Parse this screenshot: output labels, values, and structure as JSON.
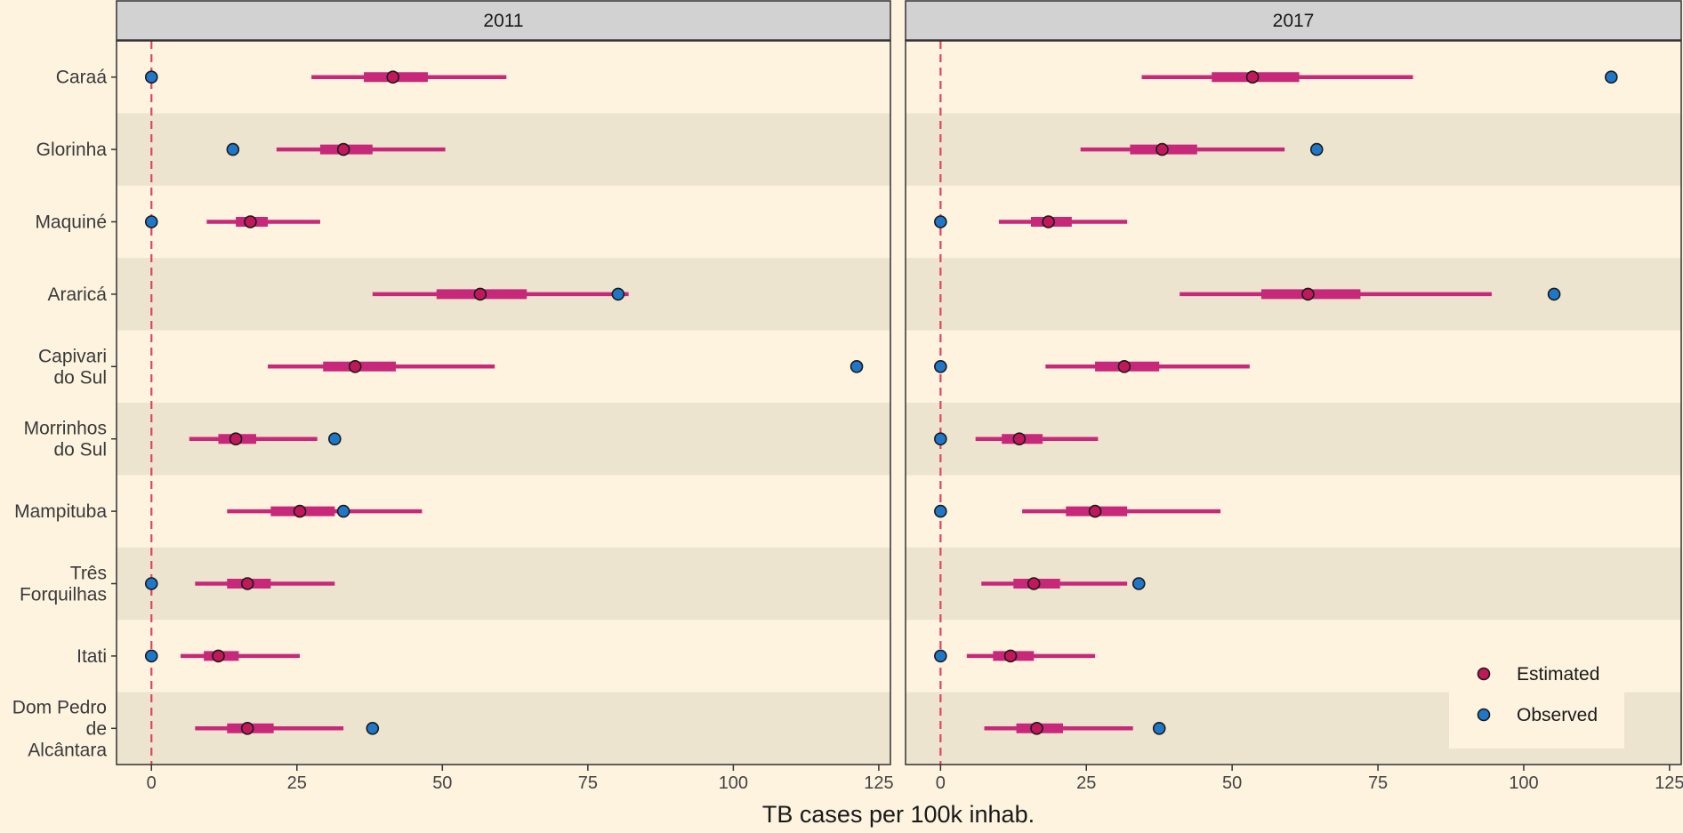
{
  "chart_data": {
    "type": "interval",
    "xlabel": "TB cases per 100k inhab.",
    "ylabel": "",
    "xlim": [
      -6,
      127
    ],
    "xticks": [
      0,
      25,
      50,
      75,
      100,
      125
    ],
    "reference_line_x": 0,
    "grid": false,
    "legend_position": "bottom-right",
    "categories": [
      "Caraá",
      "Glorinha",
      "Maquiné",
      "Araricá",
      "Capivari do Sul",
      "Morrinhos do Sul",
      "Mampituba",
      "Três Forquilhas",
      "Itati",
      "Dom Pedro de Alcântara"
    ],
    "category_label_lines": [
      [
        "Caraá"
      ],
      [
        "Glorinha"
      ],
      [
        "Maquiné"
      ],
      [
        "Araricá"
      ],
      [
        "Capivari",
        "do Sul"
      ],
      [
        "Morrinhos",
        "do Sul"
      ],
      [
        "Mampituba"
      ],
      [
        "Três",
        "Forquilhas"
      ],
      [
        "Itati"
      ],
      [
        "Dom Pedro",
        "de",
        "Alcântara"
      ]
    ],
    "legend": [
      {
        "label": "Estimated",
        "color": "#c2185b"
      },
      {
        "label": "Observed",
        "color": "#1f77c9"
      }
    ],
    "colors": {
      "estimated": "#c2185b",
      "interval": "#c8287a",
      "observed": "#1f77c9",
      "reference_line": "#e0455f",
      "band": "#ece4cf",
      "background": "#fdf3df",
      "strip": "#d2d2d2"
    },
    "panels": [
      {
        "title": "2011",
        "rows": [
          {
            "estimate": 41.5,
            "inner": [
              36.5,
              47.5
            ],
            "outer": [
              27.5,
              61.0
            ],
            "observed": 0
          },
          {
            "estimate": 33.0,
            "inner": [
              29.0,
              38.0
            ],
            "outer": [
              21.5,
              50.5
            ],
            "observed": 14.0
          },
          {
            "estimate": 17.0,
            "inner": [
              14.5,
              20.0
            ],
            "outer": [
              9.5,
              29.0
            ],
            "observed": 0
          },
          {
            "estimate": 56.5,
            "inner": [
              49.0,
              64.5
            ],
            "outer": [
              38.0,
              82.0
            ],
            "observed": 80.2
          },
          {
            "estimate": 35.0,
            "inner": [
              29.5,
              42.0
            ],
            "outer": [
              20.0,
              59.0
            ],
            "observed": 121.2
          },
          {
            "estimate": 14.5,
            "inner": [
              11.5,
              18.0
            ],
            "outer": [
              6.5,
              28.5
            ],
            "observed": 31.5
          },
          {
            "estimate": 25.5,
            "inner": [
              20.5,
              31.5
            ],
            "outer": [
              13.0,
              46.5
            ],
            "observed": 33.0
          },
          {
            "estimate": 16.5,
            "inner": [
              13.0,
              20.5
            ],
            "outer": [
              7.5,
              31.5
            ],
            "observed": 0
          },
          {
            "estimate": 11.5,
            "inner": [
              9.0,
              15.0
            ],
            "outer": [
              5.0,
              25.5
            ],
            "observed": 0
          },
          {
            "estimate": 16.5,
            "inner": [
              13.0,
              21.0
            ],
            "outer": [
              7.5,
              33.0
            ],
            "observed": 38.0
          }
        ]
      },
      {
        "title": "2017",
        "rows": [
          {
            "estimate": 53.5,
            "inner": [
              46.5,
              61.5
            ],
            "outer": [
              34.5,
              81.0
            ],
            "observed": 115.0
          },
          {
            "estimate": 38.0,
            "inner": [
              32.5,
              44.0
            ],
            "outer": [
              24.0,
              59.0
            ],
            "observed": 64.5
          },
          {
            "estimate": 18.5,
            "inner": [
              15.5,
              22.5
            ],
            "outer": [
              10.0,
              32.0
            ],
            "observed": 0
          },
          {
            "estimate": 63.0,
            "inner": [
              55.0,
              72.0
            ],
            "outer": [
              41.0,
              94.5
            ],
            "observed": 105.2
          },
          {
            "estimate": 31.5,
            "inner": [
              26.5,
              37.5
            ],
            "outer": [
              18.0,
              53.0
            ],
            "observed": 0
          },
          {
            "estimate": 13.5,
            "inner": [
              10.5,
              17.5
            ],
            "outer": [
              6.0,
              27.0
            ],
            "observed": 0
          },
          {
            "estimate": 26.5,
            "inner": [
              21.5,
              32.0
            ],
            "outer": [
              14.0,
              48.0
            ],
            "observed": 0
          },
          {
            "estimate": 16.0,
            "inner": [
              12.5,
              20.5
            ],
            "outer": [
              7.0,
              32.0
            ],
            "observed": 34.0
          },
          {
            "estimate": 12.0,
            "inner": [
              9.0,
              16.0
            ],
            "outer": [
              4.5,
              26.5
            ],
            "observed": 0
          },
          {
            "estimate": 16.5,
            "inner": [
              13.0,
              21.0
            ],
            "outer": [
              7.5,
              33.0
            ],
            "observed": 37.5
          }
        ]
      }
    ]
  }
}
